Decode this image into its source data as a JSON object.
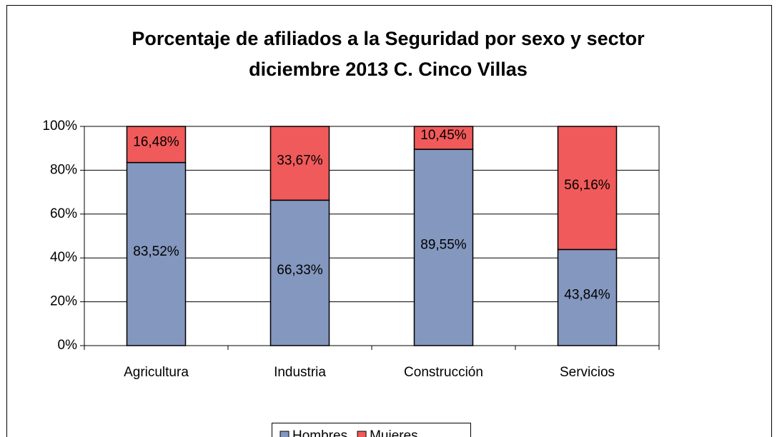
{
  "chart_data": {
    "type": "stacked_bar",
    "title": [
      "Porcentaje de afiliados a la Seguridad por sexo y sector",
      "diciembre 2013 C. Cinco Villas"
    ],
    "categories": [
      "Agricultura",
      "Industria",
      "Construcción",
      "Servicios"
    ],
    "series": [
      {
        "name": "Hombres",
        "color": "#8497bf",
        "values": [
          83.52,
          66.33,
          89.55,
          43.84
        ],
        "value_labels": [
          "83,52%",
          "66,33%",
          "89,55%",
          "43,84%"
        ]
      },
      {
        "name": "Mujeres",
        "color": "#f05a5a",
        "values": [
          16.48,
          33.67,
          10.45,
          56.16
        ],
        "value_labels": [
          "16,48%",
          "33,67%",
          "10,45%",
          "56,16%"
        ]
      }
    ],
    "ylim": [
      0,
      100
    ],
    "yticks": [
      {
        "value": 0,
        "label": "0%"
      },
      {
        "value": 20,
        "label": "20%"
      },
      {
        "value": 40,
        "label": "40%"
      },
      {
        "value": 60,
        "label": "60%"
      },
      {
        "value": 80,
        "label": "80%"
      },
      {
        "value": 100,
        "label": "100%"
      }
    ],
    "grid": true,
    "legend": "bottom"
  }
}
